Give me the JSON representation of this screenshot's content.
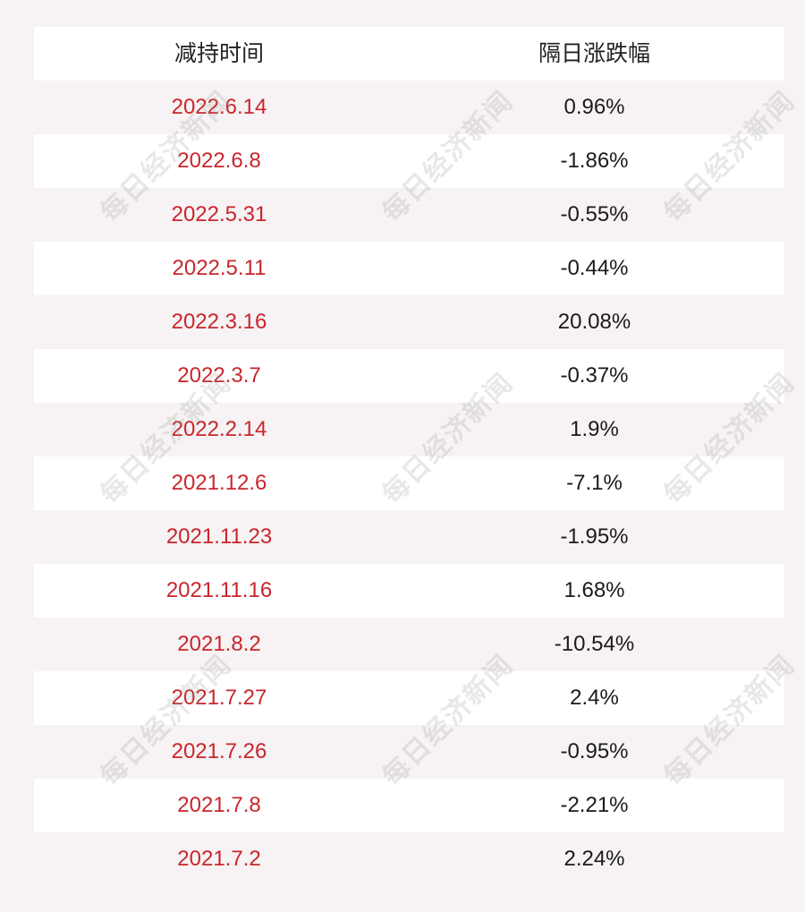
{
  "headers": {
    "date": "减持时间",
    "change": "隔日涨跌幅"
  },
  "rows": [
    {
      "date": "2022.6.14",
      "change": "0.96%"
    },
    {
      "date": "2022.6.8",
      "change": "-1.86%"
    },
    {
      "date": "2022.5.31",
      "change": "-0.55%"
    },
    {
      "date": "2022.5.11",
      "change": "-0.44%"
    },
    {
      "date": "2022.3.16",
      "change": "20.08%"
    },
    {
      "date": "2022.3.7",
      "change": "-0.37%"
    },
    {
      "date": "2022.2.14",
      "change": "1.9%"
    },
    {
      "date": "2021.12.6",
      "change": "-7.1%"
    },
    {
      "date": "2021.11.23",
      "change": "-1.95%"
    },
    {
      "date": "2021.11.16",
      "change": "1.68%"
    },
    {
      "date": "2021.8.2",
      "change": "-10.54%"
    },
    {
      "date": "2021.7.27",
      "change": "2.4%"
    },
    {
      "date": "2021.7.26",
      "change": "-0.95%"
    },
    {
      "date": "2021.7.8",
      "change": "-2.21%"
    },
    {
      "date": "2021.7.2",
      "change": "2.24%"
    }
  ],
  "watermark": "每日经济新闻",
  "colors": {
    "date_text": "#c8262c",
    "value_text": "#1a1a1a",
    "background": "#f7f2f3",
    "row_alt": "#ffffff"
  }
}
